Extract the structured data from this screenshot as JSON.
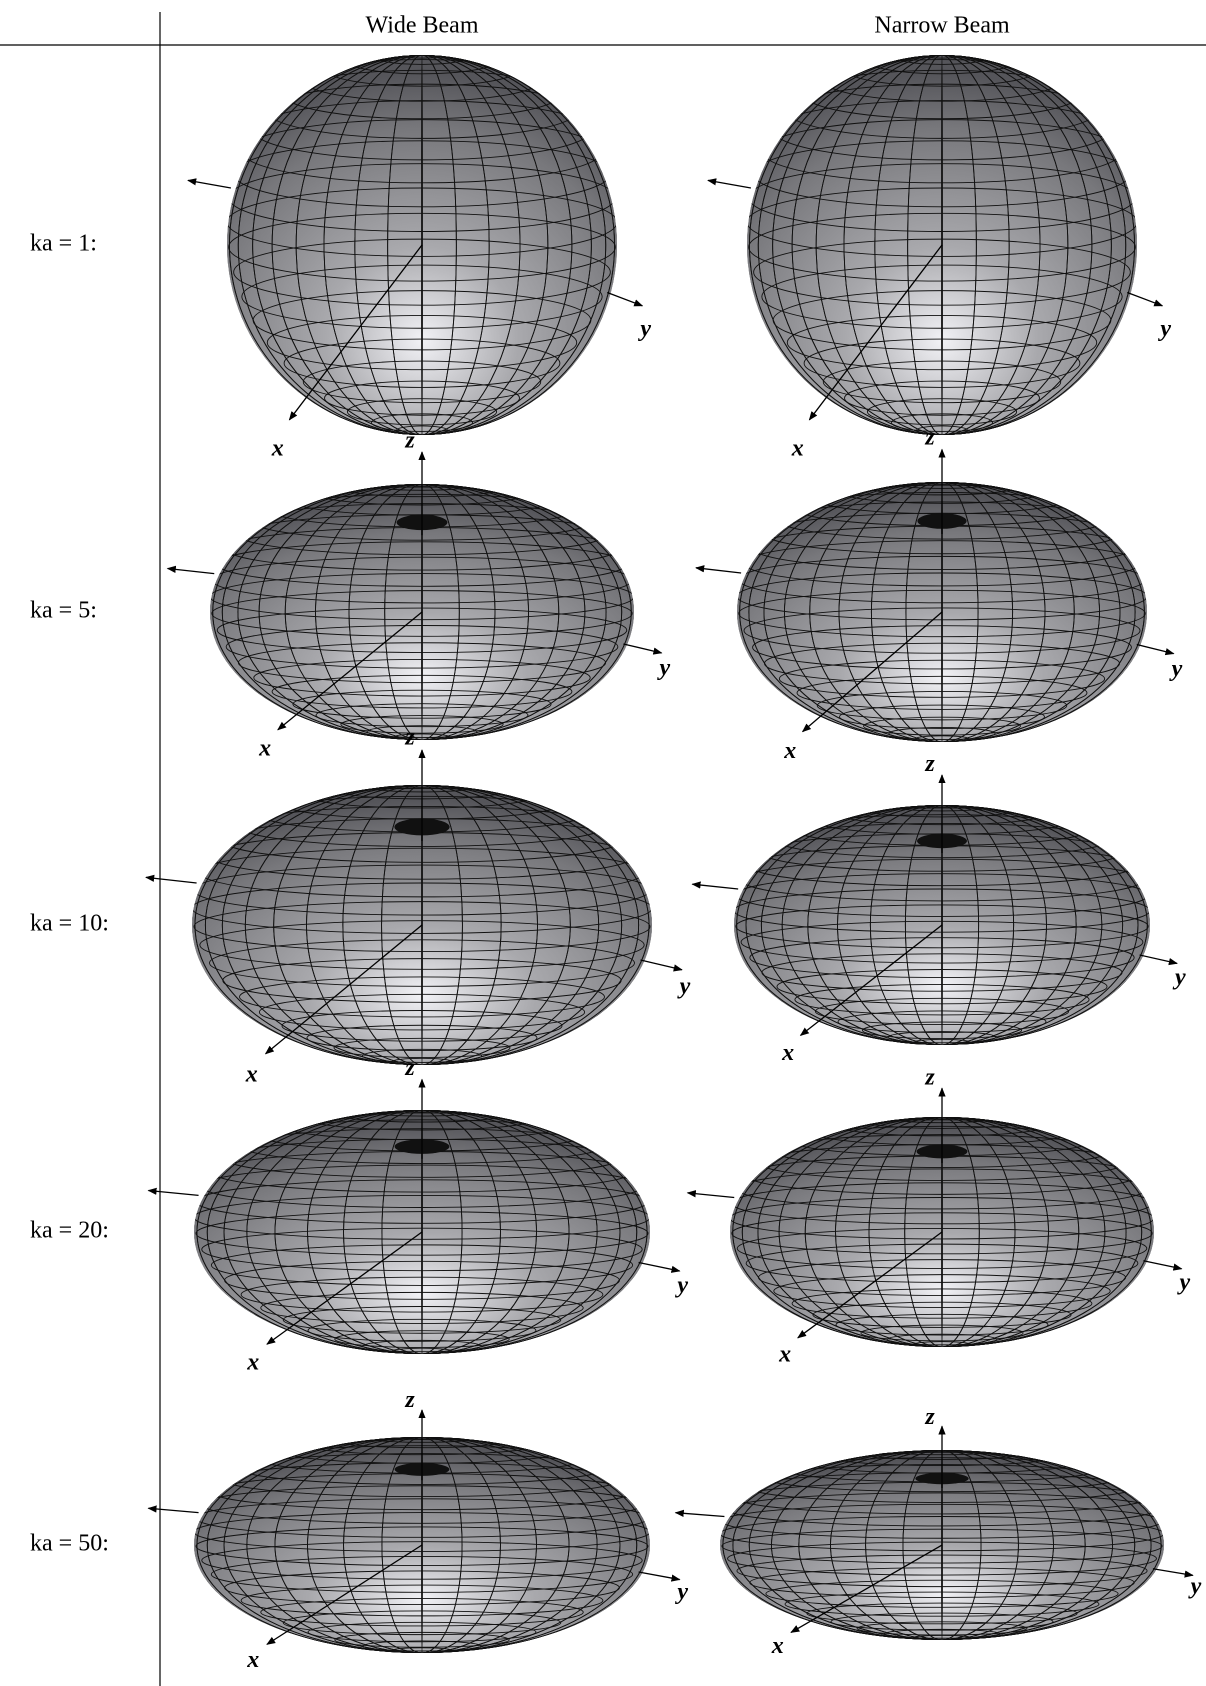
{
  "header": {
    "columns": [
      "Wide Beam",
      "Narrow Beam"
    ]
  },
  "rows": [
    {
      "label": "ka = 1:"
    },
    {
      "label": "ka = 5:"
    },
    {
      "label": "ka = 10:"
    },
    {
      "label": "ka = 20:"
    },
    {
      "label": "ka = 50:"
    }
  ],
  "axis_labels": {
    "x": "x",
    "y": "y",
    "z": "z"
  }
}
